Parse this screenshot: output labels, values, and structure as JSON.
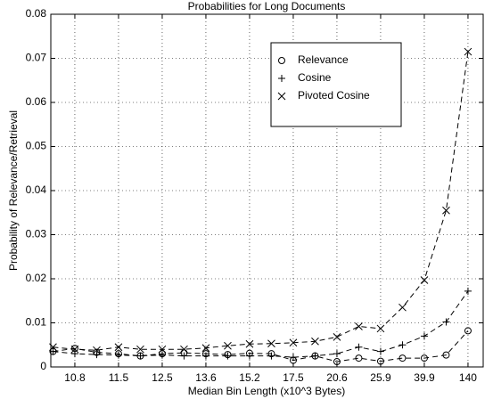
{
  "chart_data": {
    "type": "line",
    "title": "Probabilities for Long Documents",
    "xlabel": "Median Bin Length (x10^3 Bytes)",
    "ylabel": "Probability of Relevance/Retrieval",
    "categories": [
      null,
      "10.8",
      null,
      "11.5",
      null,
      "12.5",
      null,
      "13.6",
      null,
      "15.2",
      null,
      "17.5",
      null,
      "20.6",
      null,
      "25.9",
      null,
      "39.9",
      null,
      "140"
    ],
    "ylim": [
      0,
      0.08
    ],
    "yticks": [
      0,
      0.01,
      0.02,
      0.03,
      0.04,
      0.05,
      0.06,
      0.07,
      0.08
    ],
    "grid": true,
    "legend": "upper right",
    "linestyle": "dashed",
    "series": [
      {
        "name": "Relevance",
        "color": "#000000",
        "marker": "o",
        "values": [
          0.0035,
          0.0042,
          0.0033,
          0.003,
          0.0025,
          0.003,
          0.0032,
          0.003,
          0.0028,
          0.0031,
          0.003,
          0.0015,
          0.0025,
          0.0012,
          0.002,
          0.0013,
          0.002,
          0.002,
          0.0027,
          0.0082
        ]
      },
      {
        "name": "Cosine",
        "color": "#000000",
        "marker": "+",
        "values": [
          0.0035,
          0.003,
          0.0028,
          0.0027,
          0.0025,
          0.0027,
          0.0025,
          0.0025,
          0.0025,
          0.0025,
          0.0025,
          0.0022,
          0.0025,
          0.003,
          0.0045,
          0.0035,
          0.005,
          0.007,
          0.0102,
          0.0172
        ]
      },
      {
        "name": "Pivoted Cosine",
        "color": "#000000",
        "marker": "x",
        "values": [
          0.0045,
          0.004,
          0.0038,
          0.0045,
          0.004,
          0.004,
          0.004,
          0.0043,
          0.0048,
          0.0052,
          0.0053,
          0.0055,
          0.0058,
          0.0068,
          0.0092,
          0.0087,
          0.0135,
          0.0197,
          0.0355,
          0.0715
        ]
      }
    ]
  }
}
